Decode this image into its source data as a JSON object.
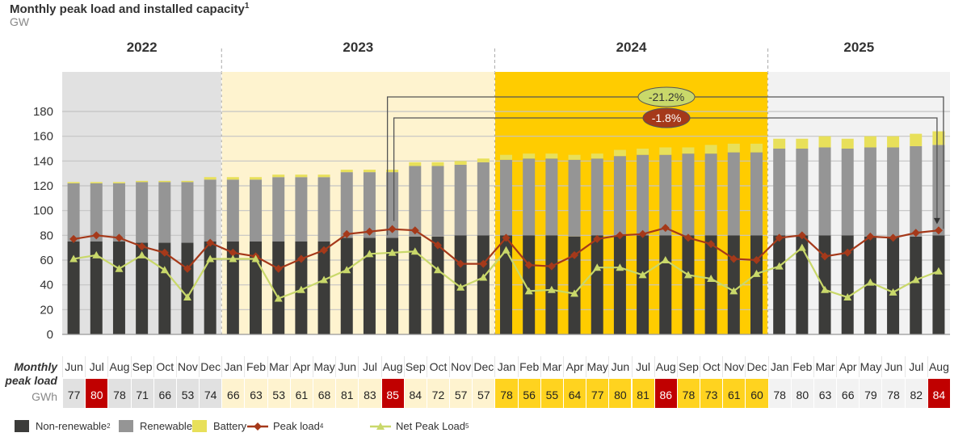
{
  "header": {
    "title": "Monthly peak load and installed capacity",
    "title_sup": "1",
    "unit": "GW"
  },
  "chart_data": {
    "type": "bar",
    "title": "Monthly peak load and installed capacity",
    "ylabel": "GW",
    "ylim": [
      0,
      180
    ],
    "yticks": [
      "0",
      "20",
      "40",
      "60",
      "80",
      "100",
      "120",
      "140",
      "160",
      "180"
    ],
    "grid": true,
    "legend_position": "bottom",
    "years": [
      {
        "label": "2022",
        "months": 7,
        "bg": "#e1e1e1"
      },
      {
        "label": "2023",
        "months": 12,
        "bg": "#fef3cf"
      },
      {
        "label": "2024",
        "months": 12,
        "bg": "#ffcc00"
      },
      {
        "label": "2025",
        "months": 8,
        "bg": "#f2f2f2"
      }
    ],
    "categories": [
      "Jun",
      "Jul",
      "Aug",
      "Sep",
      "Oct",
      "Nov",
      "Dec",
      "Jan",
      "Feb",
      "Mar",
      "Apr",
      "May",
      "Jun",
      "Jul",
      "Aug",
      "Sep",
      "Oct",
      "Nov",
      "Dec",
      "Jan",
      "Feb",
      "Mar",
      "Apr",
      "May",
      "Jun",
      "Jul",
      "Aug",
      "Sep",
      "Oct",
      "Nov",
      "Dec",
      "Jan",
      "Feb",
      "Mar",
      "Apr",
      "May",
      "Jun",
      "Jul",
      "Aug"
    ],
    "series": [
      {
        "name": "Non-renewable",
        "sup": "2",
        "type": "bar",
        "color": "#3c3c3a",
        "values": [
          75,
          75,
          75,
          74,
          74,
          74,
          75,
          75,
          75,
          75,
          75,
          75,
          78,
          78,
          78,
          79,
          79,
          80,
          80,
          80,
          80,
          80,
          79,
          80,
          80,
          80,
          80,
          80,
          80,
          80,
          80,
          80,
          80,
          80,
          80,
          79,
          79,
          79,
          80
        ]
      },
      {
        "name": "Renewable",
        "sup": "3",
        "type": "bar",
        "color": "#959595",
        "values": [
          47,
          47,
          47,
          49,
          49,
          49,
          50,
          50,
          50,
          52,
          52,
          52,
          53,
          53,
          53,
          57,
          57,
          57,
          59,
          61,
          62,
          62,
          62,
          62,
          64,
          65,
          65,
          66,
          66,
          67,
          67,
          70,
          70,
          71,
          70,
          72,
          72,
          73,
          73
        ]
      },
      {
        "name": "Battery",
        "sup": "",
        "type": "bar",
        "color": "#e8e05a",
        "values": [
          1,
          1,
          1,
          1,
          1,
          1,
          2,
          2,
          2,
          2,
          2,
          2,
          2,
          2,
          2,
          3,
          3,
          3,
          3,
          4,
          4,
          4,
          4,
          4,
          5,
          5,
          6,
          5,
          7,
          7,
          7,
          8,
          8,
          9,
          8,
          9,
          9,
          10,
          11
        ]
      },
      {
        "name": "Peak load",
        "sup": "4",
        "type": "line",
        "color": "#a5391a",
        "values": [
          77,
          80,
          78,
          71,
          66,
          53,
          74,
          66,
          63,
          53,
          61,
          68,
          81,
          83,
          85,
          84,
          72,
          57,
          57,
          78,
          56,
          55,
          64,
          77,
          80,
          81,
          86,
          78,
          73,
          61,
          60,
          78,
          80,
          63,
          66,
          79,
          78,
          82,
          84
        ]
      },
      {
        "name": "Net Peak Load",
        "sup": "5",
        "type": "line",
        "color": "#c9d86a",
        "values": [
          61,
          64,
          53,
          64,
          52,
          30,
          61,
          61,
          61,
          29,
          36,
          44,
          52,
          65,
          66,
          67,
          52,
          38,
          46,
          68,
          35,
          36,
          33,
          54,
          54,
          48,
          60,
          48,
          45,
          35,
          49,
          55,
          70,
          36,
          30,
          42,
          34,
          44,
          51
        ]
      }
    ],
    "annotations": [
      {
        "label": "-21.2%",
        "color": "#c9d86a",
        "text_color": "#333333"
      },
      {
        "label": "-1.8%",
        "color": "#a5391a",
        "text_color": "#ffffff"
      }
    ]
  },
  "table": {
    "label_line1": "Monthly",
    "label_line2": "peak load",
    "unit": "GWh",
    "highlight_color": "#c00000",
    "highlight_indices": [
      1,
      14,
      26,
      38
    ]
  },
  "legend": [
    {
      "label": "Non-renewable",
      "sup": "2"
    },
    {
      "label": "Renewable",
      "sup": "3"
    },
    {
      "label": "Battery",
      "sup": ""
    },
    {
      "label": "Peak load",
      "sup": "4"
    },
    {
      "label": "Net Peak Load",
      "sup": "5"
    }
  ]
}
